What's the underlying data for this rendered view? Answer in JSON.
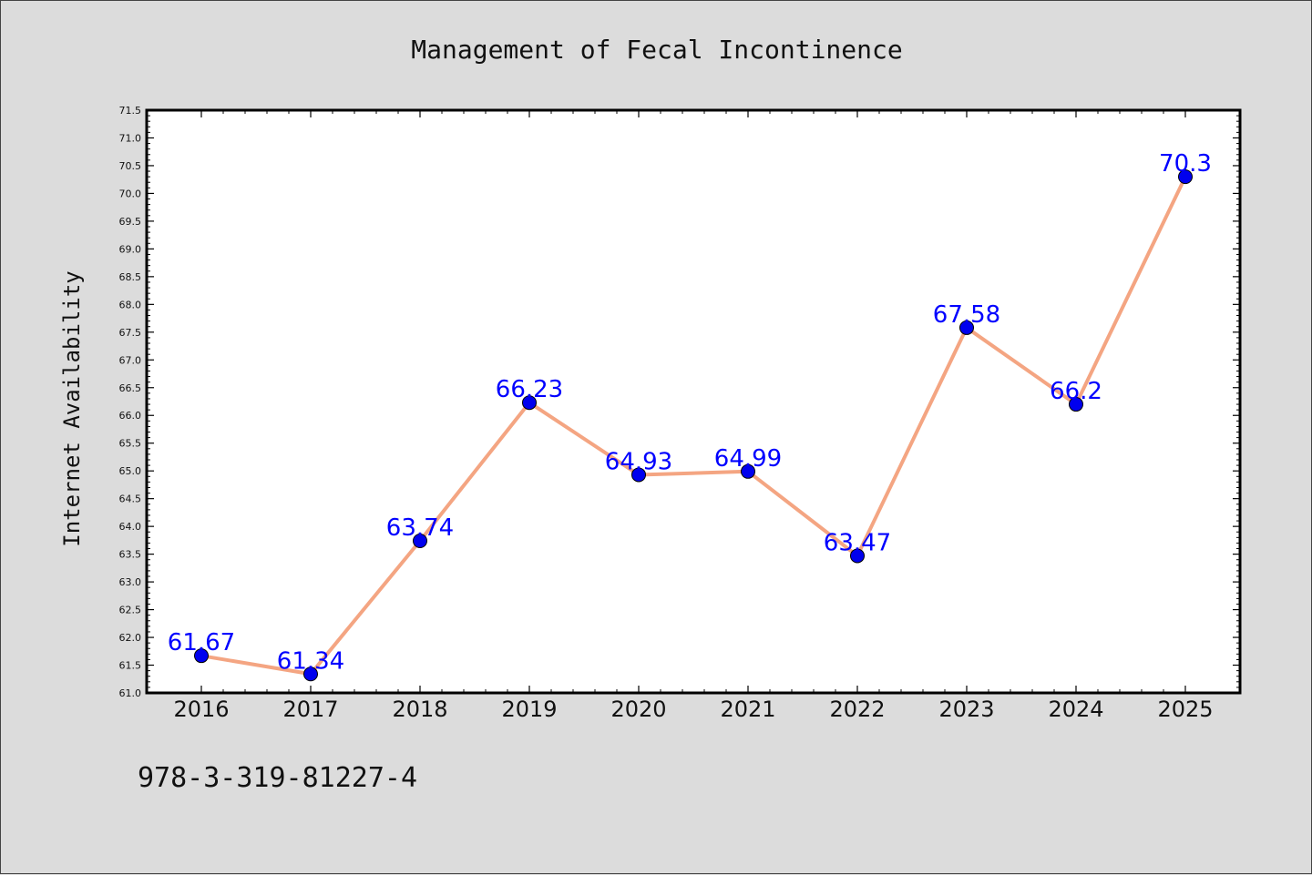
{
  "footer_code": "978-3-319-81227-4",
  "chart_data": {
    "type": "line",
    "title": "Management of Fecal Incontinence",
    "xlabel": "",
    "ylabel": "Internet Availability",
    "categories": [
      "2016",
      "2017",
      "2018",
      "2019",
      "2020",
      "2021",
      "2022",
      "2023",
      "2024",
      "2025"
    ],
    "values": [
      61.67,
      61.34,
      63.74,
      66.23,
      64.93,
      64.99,
      63.47,
      67.58,
      66.2,
      70.3
    ],
    "data_labels": [
      "61.67",
      "61.34",
      "63.74",
      "66.23",
      "64.93",
      "64.99",
      "63.47",
      "67.58",
      "66.2",
      "70.3"
    ],
    "ylim": [
      61.0,
      71.5
    ],
    "ytick_step": 0.5,
    "grid": false,
    "legend": "none",
    "colors": {
      "line": "#f4a582",
      "marker": "#0000ee",
      "label": "#0000ff",
      "plot_bg": "#ffffff",
      "page_bg": "#dcdcdc"
    }
  }
}
